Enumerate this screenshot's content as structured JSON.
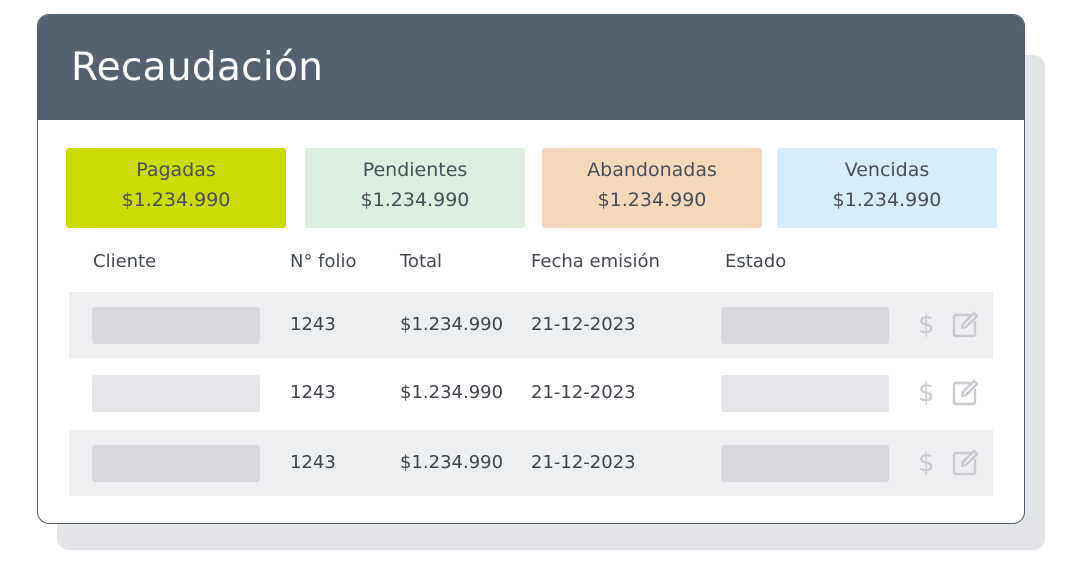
{
  "header": {
    "title": "Recaudación"
  },
  "cards": [
    {
      "label": "Pagadas",
      "amount": "$1.234.990",
      "color": "#cbdc00"
    },
    {
      "label": "Pendientes",
      "amount": "$1.234.990",
      "color": "#dcefe1"
    },
    {
      "label": "Abandonadas",
      "amount": "$1.234.990",
      "color": "#f5d9bd"
    },
    {
      "label": "Vencidas",
      "amount": "$1.234.990",
      "color": "#d7eefa"
    }
  ],
  "table": {
    "columns": [
      "Cliente",
      "N° folio",
      "Total",
      "Fecha emisión",
      "Estado"
    ],
    "rows": [
      {
        "folio": "1243",
        "total": "$1.234.990",
        "fecha": "21-12-2023"
      },
      {
        "folio": "1243",
        "total": "$1.234.990",
        "fecha": "21-12-2023"
      },
      {
        "folio": "1243",
        "total": "$1.234.990",
        "fecha": "21-12-2023"
      }
    ],
    "action_icons": [
      "dollar-icon",
      "edit-icon"
    ],
    "dollar_glyph": "$"
  }
}
